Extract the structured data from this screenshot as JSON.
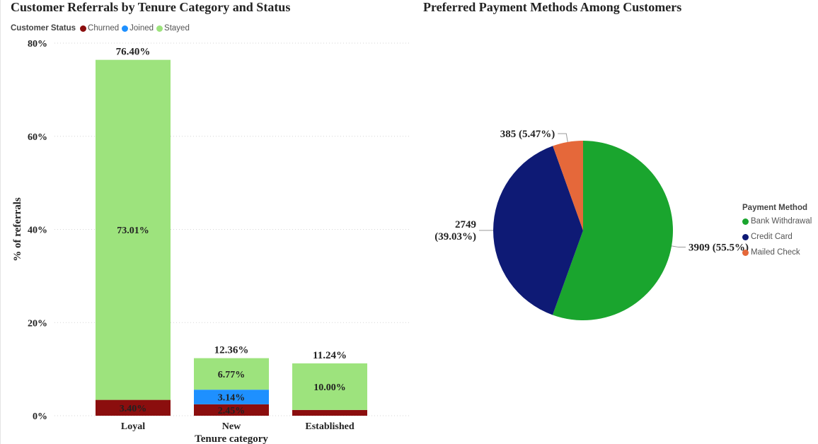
{
  "bar_panel": {
    "title": "Customer Referrals by Tenure Category and Status",
    "legend_title": "Customer Status"
  },
  "pie_panel": {
    "title": "Preferred Payment Methods Among Customers",
    "legend_title": "Payment Method"
  },
  "chart_data": [
    {
      "type": "bar",
      "stacked": true,
      "title": "Customer Referrals by Tenure Category and Status",
      "xlabel": "Tenure category",
      "ylabel": "% of referrals",
      "categories": [
        "Loyal",
        "New",
        "Established"
      ],
      "ylim": [
        0,
        80
      ],
      "yticks": [
        0,
        20,
        40,
        60,
        80
      ],
      "ytick_labels": [
        "0%",
        "20%",
        "40%",
        "60%",
        "80%"
      ],
      "grid": true,
      "legend_title": "Customer Status",
      "legend_position": "top-left",
      "series": [
        {
          "name": "Churned",
          "color": "#8b0e0e",
          "values": [
            3.4,
            2.45,
            1.24
          ],
          "labels": [
            "3.40%",
            "2.45%",
            ""
          ]
        },
        {
          "name": "Joined",
          "color": "#1e90ff",
          "values": [
            0,
            3.14,
            0
          ],
          "labels": [
            "",
            "3.14%",
            ""
          ]
        },
        {
          "name": "Stayed",
          "color": "#9de37d",
          "values": [
            73.01,
            6.77,
            10.0
          ],
          "labels": [
            "73.01%",
            "6.77%",
            "10.00%"
          ]
        }
      ],
      "totals": [
        76.4,
        12.36,
        11.24
      ],
      "total_labels": [
        "76.40%",
        "12.36%",
        "11.24%"
      ]
    },
    {
      "type": "pie",
      "title": "Preferred Payment Methods Among Customers",
      "legend_title": "Payment Method",
      "legend_position": "right",
      "slices": [
        {
          "name": "Bank Withdrawal",
          "value": 3909,
          "percent": 55.5,
          "label": "3909 (55.5%)",
          "color": "#1aa52e"
        },
        {
          "name": "Credit Card",
          "value": 2749,
          "percent": 39.03,
          "label_line1": "2749",
          "label_line2": "(39.03%)",
          "color": "#0e1a75"
        },
        {
          "name": "Mailed Check",
          "value": 385,
          "percent": 5.47,
          "label": "385 (5.47%)",
          "color": "#e5683a"
        }
      ]
    }
  ]
}
